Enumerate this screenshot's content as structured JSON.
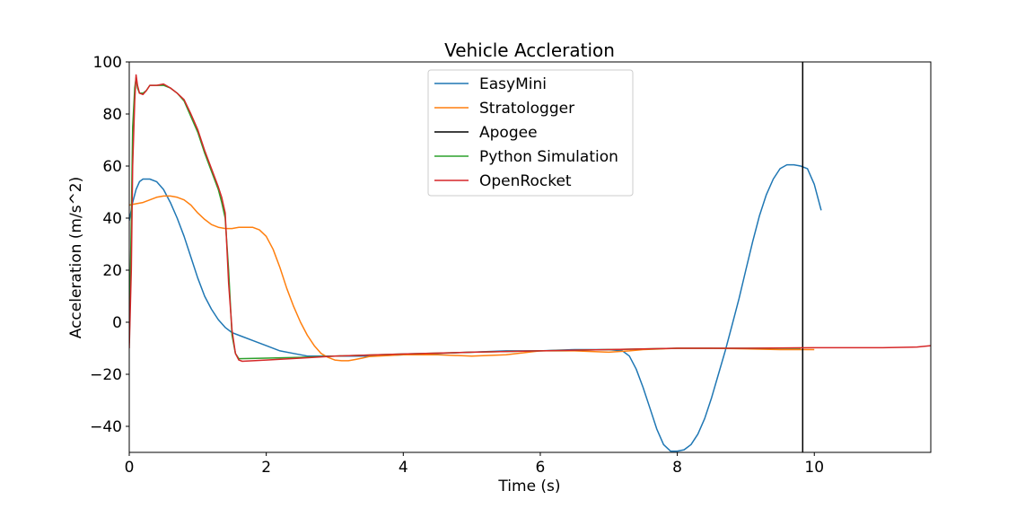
{
  "chart_data": {
    "type": "line",
    "title": "Vehicle Accleration",
    "xlabel": "Time (s)",
    "ylabel": "Acceleration (m/s^2)",
    "xlim": [
      0,
      11.7
    ],
    "ylim": [
      -50,
      100
    ],
    "xticks": [
      0,
      2,
      4,
      6,
      8,
      10
    ],
    "yticks": [
      -40,
      -20,
      0,
      20,
      40,
      60,
      80,
      100
    ],
    "xtick_labels": [
      "0",
      "2",
      "4",
      "6",
      "8",
      "10"
    ],
    "ytick_labels": [
      "−40",
      "−20",
      "0",
      "20",
      "40",
      "60",
      "80",
      "100"
    ],
    "legend_position": "upper-center",
    "grid": false,
    "series": [
      {
        "name": "EasyMini",
        "color": "#1f77b4",
        "x": [
          0,
          0.05,
          0.1,
          0.15,
          0.2,
          0.3,
          0.4,
          0.5,
          0.6,
          0.7,
          0.8,
          0.9,
          1.0,
          1.1,
          1.2,
          1.3,
          1.4,
          1.5,
          1.6,
          1.8,
          2.0,
          2.2,
          2.4,
          2.6,
          2.8,
          3.0,
          3.5,
          4.0,
          4.5,
          5.0,
          5.5,
          6.0,
          6.5,
          7.0,
          7.2,
          7.3,
          7.4,
          7.5,
          7.6,
          7.7,
          7.8,
          7.9,
          8.0,
          8.1,
          8.2,
          8.3,
          8.4,
          8.5,
          8.6,
          8.7,
          8.8,
          8.9,
          9.0,
          9.1,
          9.2,
          9.3,
          9.4,
          9.5,
          9.6,
          9.7,
          9.8,
          9.9,
          10.0,
          10.1
        ],
        "y": [
          39,
          46,
          51,
          54,
          55,
          55,
          54,
          51,
          46,
          40,
          33,
          25,
          17,
          10,
          5,
          1,
          -2,
          -4,
          -5,
          -7,
          -9,
          -11,
          -12,
          -13,
          -13,
          -13,
          -13,
          -12.5,
          -12,
          -11.5,
          -11,
          -11,
          -10.5,
          -10.5,
          -11,
          -13,
          -18,
          -25,
          -33,
          -41,
          -47,
          -49.5,
          -49.5,
          -49,
          -47,
          -43,
          -37,
          -29,
          -20,
          -11,
          -1,
          9,
          20,
          31,
          41,
          49,
          55,
          59,
          60.5,
          60.5,
          60,
          59,
          53,
          43
        ]
      },
      {
        "name": "Stratologger",
        "color": "#ff7f0e",
        "x": [
          0,
          0.1,
          0.2,
          0.3,
          0.4,
          0.5,
          0.6,
          0.7,
          0.8,
          0.9,
          1.0,
          1.1,
          1.2,
          1.3,
          1.4,
          1.5,
          1.6,
          1.7,
          1.8,
          1.9,
          2.0,
          2.1,
          2.2,
          2.3,
          2.4,
          2.5,
          2.6,
          2.7,
          2.8,
          2.9,
          3.0,
          3.1,
          3.2,
          3.3,
          3.4,
          3.5,
          4.0,
          4.5,
          5.0,
          5.5,
          6.0,
          6.5,
          7.0,
          7.3,
          7.5,
          8.0,
          8.5,
          9.0,
          9.5,
          10.0
        ],
        "y": [
          45,
          45.5,
          46,
          47,
          48,
          48.5,
          48.5,
          48,
          47,
          45,
          42,
          39.5,
          37.5,
          36.5,
          36,
          36,
          36.5,
          36.5,
          36.5,
          35.5,
          33,
          28,
          21,
          13,
          6,
          0,
          -5,
          -9,
          -12,
          -13.5,
          -14.5,
          -14.8,
          -14.8,
          -14.3,
          -13.8,
          -13.2,
          -12.5,
          -12.5,
          -13,
          -12.5,
          -11,
          -11,
          -11.5,
          -11,
          -10.5,
          -10,
          -10,
          -10.2,
          -10.5,
          -10.5
        ]
      },
      {
        "name": "Apogee",
        "color": "#000000",
        "x": [
          9.83,
          9.83
        ],
        "y": [
          -50,
          100
        ]
      },
      {
        "name": "Python Simulation",
        "color": "#2ca02c",
        "x": [
          0,
          0.03,
          0.05,
          0.08,
          0.1,
          0.12,
          0.15,
          0.2,
          0.25,
          0.3,
          0.35,
          0.4,
          0.5,
          0.6,
          0.7,
          0.8,
          0.9,
          1.0,
          1.1,
          1.2,
          1.3,
          1.35,
          1.4,
          1.45,
          1.5,
          1.55,
          1.6,
          2.0,
          2.5,
          3.0,
          4.0,
          5.0,
          6.0,
          7.0,
          8.0,
          9.0,
          9.8
        ],
        "y": [
          -8,
          40,
          75,
          90,
          94,
          90,
          88,
          88,
          89,
          91,
          91,
          91,
          91,
          90,
          88,
          85,
          79,
          73,
          65,
          58,
          51,
          46,
          40,
          20,
          -5,
          -12,
          -14,
          -13.8,
          -13.5,
          -13,
          -12.2,
          -11.5,
          -11,
          -10.5,
          -10,
          -10,
          -10
        ]
      },
      {
        "name": "OpenRocket",
        "color": "#d62728",
        "x": [
          0,
          0.03,
          0.05,
          0.08,
          0.1,
          0.12,
          0.15,
          0.2,
          0.25,
          0.3,
          0.35,
          0.4,
          0.5,
          0.6,
          0.7,
          0.8,
          0.9,
          1.0,
          1.1,
          1.2,
          1.3,
          1.35,
          1.4,
          1.45,
          1.5,
          1.55,
          1.6,
          1.65,
          2.0,
          2.5,
          3.0,
          4.0,
          5.0,
          6.0,
          7.0,
          8.0,
          9.0,
          10.0,
          10.5,
          11.0,
          11.5,
          11.7
        ],
        "y": [
          -10,
          20,
          60,
          85,
          95,
          91,
          88,
          87.5,
          89,
          91,
          91,
          91,
          91.5,
          90,
          88,
          85.5,
          80,
          74,
          66,
          59,
          52,
          48,
          42,
          15,
          -3,
          -12,
          -14.5,
          -15,
          -14.5,
          -13.8,
          -13,
          -12.2,
          -11.5,
          -11,
          -10.5,
          -10,
          -10,
          -9.8,
          -9.8,
          -9.8,
          -9.5,
          -9
        ]
      }
    ]
  }
}
